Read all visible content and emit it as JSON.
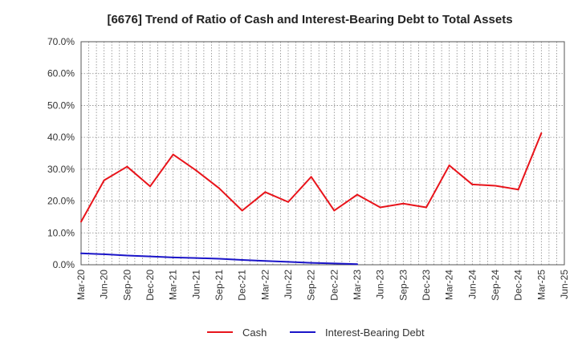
{
  "chart_data": {
    "type": "line",
    "title": "[6676]  Trend of Ratio of Cash and Interest-Bearing Debt to Total Assets",
    "xlabel": "",
    "ylabel": "",
    "ylim": [
      0,
      70
    ],
    "yticks": [
      "0.0%",
      "10.0%",
      "20.0%",
      "30.0%",
      "40.0%",
      "50.0%",
      "60.0%",
      "70.0%"
    ],
    "grid": true,
    "legend_position": "bottom",
    "categories": [
      "Mar-20",
      "Jun-20",
      "Sep-20",
      "Dec-20",
      "Mar-21",
      "Jun-21",
      "Sep-21",
      "Dec-21",
      "Mar-22",
      "Jun-22",
      "Sep-22",
      "Dec-22",
      "Mar-23",
      "Jun-23",
      "Sep-23",
      "Dec-23",
      "Mar-24",
      "Jun-24",
      "Sep-24",
      "Dec-24",
      "Mar-25",
      "Jun-25"
    ],
    "series": [
      {
        "name": "Cash",
        "color": "#e8141b",
        "values": [
          13.5,
          26.5,
          30.8,
          24.6,
          34.6,
          29.6,
          24.0,
          17.0,
          22.8,
          19.7,
          27.6,
          17.0,
          22.0,
          18.0,
          19.2,
          18.0,
          31.2,
          25.2,
          24.8,
          23.6,
          41.3,
          null
        ]
      },
      {
        "name": "Interest-Bearing Debt",
        "color": "#1a14c8",
        "values": [
          3.6,
          3.3,
          2.9,
          2.6,
          2.3,
          2.1,
          1.9,
          1.5,
          1.2,
          0.9,
          0.6,
          0.4,
          0.2,
          null,
          null,
          null,
          null,
          null,
          null,
          null,
          null,
          null
        ]
      }
    ]
  }
}
